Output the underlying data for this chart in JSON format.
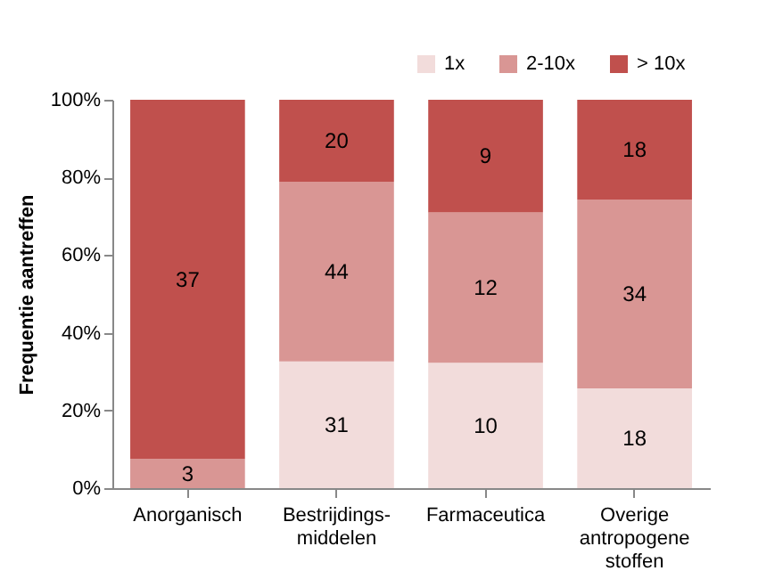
{
  "chart_data": {
    "type": "bar",
    "stacked": true,
    "ylabel": "Frequentie aantreffen",
    "categories": [
      "Anorganisch",
      "Bestrijdings-\nmiddelen",
      "Farmaceutica",
      "Overige\nantropogene\nstoffen"
    ],
    "series": [
      {
        "name": "1x",
        "color": "#f2dcdb",
        "values": [
          0,
          32.6,
          32.3,
          25.7
        ]
      },
      {
        "name": "2-10x",
        "color": "#d99694",
        "values": [
          7.5,
          46.3,
          38.7,
          48.6
        ]
      },
      {
        "name": "> 10x",
        "color": "#c0504d",
        "values": [
          92.5,
          21.1,
          29.0,
          25.7
        ]
      }
    ],
    "annotations": [
      "3",
      "37",
      "31",
      "44",
      "20",
      "10",
      "12",
      "9",
      "18",
      "34",
      "18"
    ],
    "ylim": [
      0,
      100
    ],
    "yticks": [
      {
        "value": 0,
        "label": "0%"
      },
      {
        "value": 20,
        "label": "20%"
      },
      {
        "value": 40,
        "label": "40%"
      },
      {
        "value": 60,
        "label": "60%"
      },
      {
        "value": 80,
        "label": "80%"
      },
      {
        "value": 100,
        "label": "100%"
      }
    ],
    "grid": false,
    "legend": "top right"
  }
}
